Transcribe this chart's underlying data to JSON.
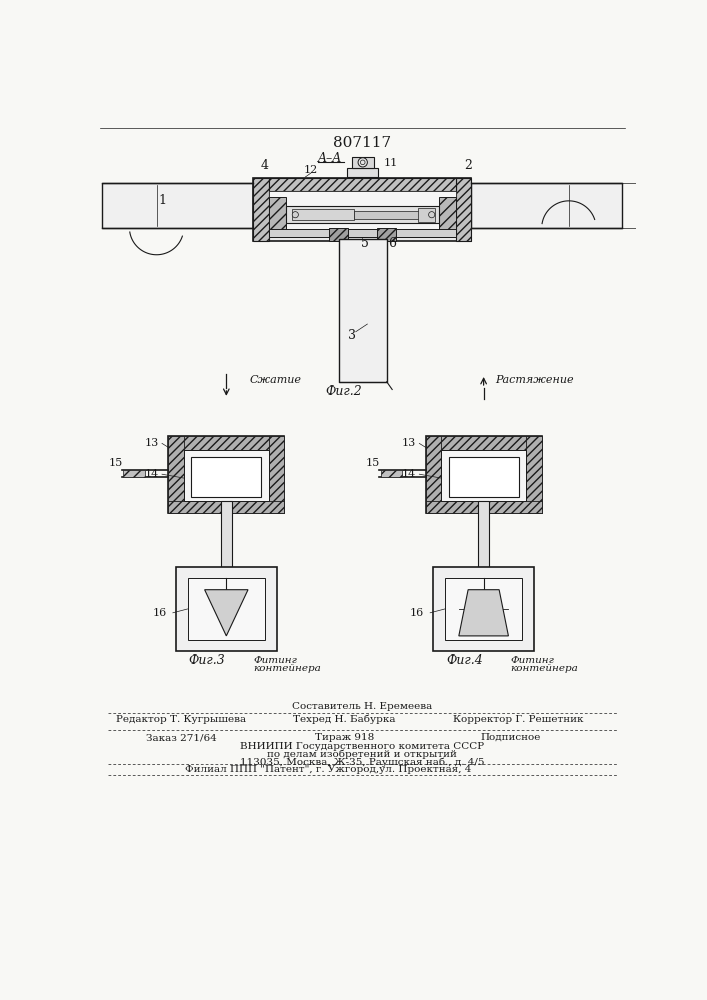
{
  "patent_number": "807117",
  "background_color": "#f8f8f5",
  "line_color": "#1a1a1a",
  "fig2_label": "Фиг.2",
  "fig3_label": "Фиг.3",
  "fig4_label": "Фиг.4",
  "section_label": "A–A",
  "compression_label": "Сжатие",
  "tension_label": "Растяжение",
  "fitting_label1": "Фитинг",
  "fitting_label2": "контейнера",
  "editor_line": "Редактор Т. Кугрышева",
  "composer_line": "Составитель Н. Еремеева",
  "techred_line": "Техред Н. Бабурка",
  "corrector_line": "Корректор Г. Решетник",
  "order_line": "Заказ 271/64",
  "tirage_line": "Тираж 918",
  "podpisnoe_line": "Подписное",
  "vniip_line1": "ВНИИПИ Государственного комитета СССР",
  "vniip_line2": "по делам изобретений и открытий",
  "vniip_line3": "113035, Москва, Ж-35, Раушская наб., д. 4/5",
  "filial_line": "Филиал ППП \"Патент\", г. Ужгород,ул. Проектная, 4"
}
